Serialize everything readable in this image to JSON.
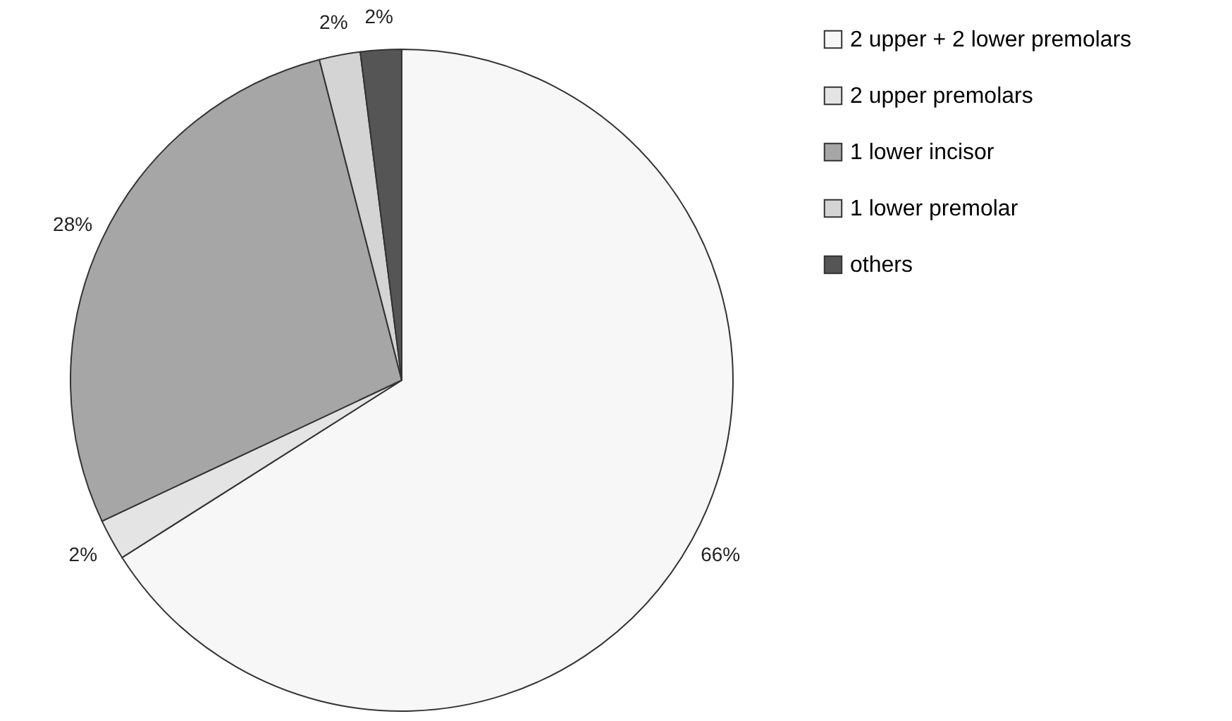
{
  "chart_data": {
    "type": "pie",
    "categories": [
      "2 upper + 2 lower premolars",
      "2 upper premolars",
      "1 lower incisor",
      "1 lower premolar",
      "others"
    ],
    "values": [
      66,
      2,
      28,
      2,
      2
    ],
    "value_labels": [
      "66%",
      "2%",
      "28%",
      "2%",
      "2%"
    ],
    "colors": [
      "#f7f7f7",
      "#e4e4e4",
      "#a6a6a6",
      "#d4d4d4",
      "#555555"
    ],
    "legend": "right"
  }
}
